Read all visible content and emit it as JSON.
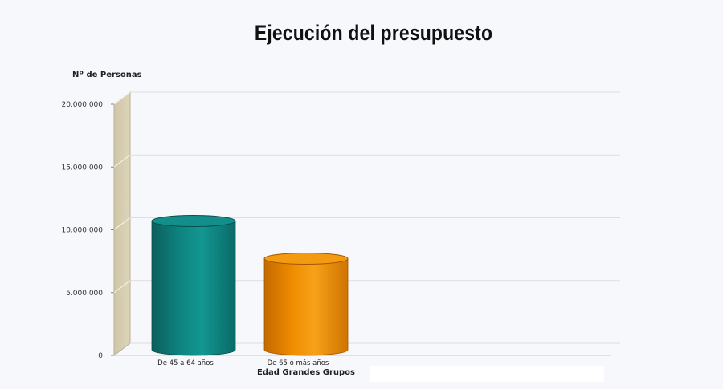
{
  "chart_data": {
    "type": "bar",
    "title": "Ejecución del presupuesto",
    "ylabel": "Nº de Personas",
    "xlabel": "Edad Grandes Grupos",
    "categories": [
      "De 45 a 64 años",
      "De 65 ó más años"
    ],
    "values": [
      10700000,
      7700000
    ],
    "colors": [
      "#0f8a86",
      "#f29400"
    ],
    "yticks": [
      {
        "value": 0,
        "label": "0"
      },
      {
        "value": 5000000,
        "label": "5.000.000"
      },
      {
        "value": 10000000,
        "label": "10.000.000"
      },
      {
        "value": 15000000,
        "label": "15.000.000"
      },
      {
        "value": 20000000,
        "label": "20.000.000"
      }
    ],
    "ylim": [
      0,
      20000000
    ],
    "grid": true,
    "style": "3d-cylinder"
  }
}
